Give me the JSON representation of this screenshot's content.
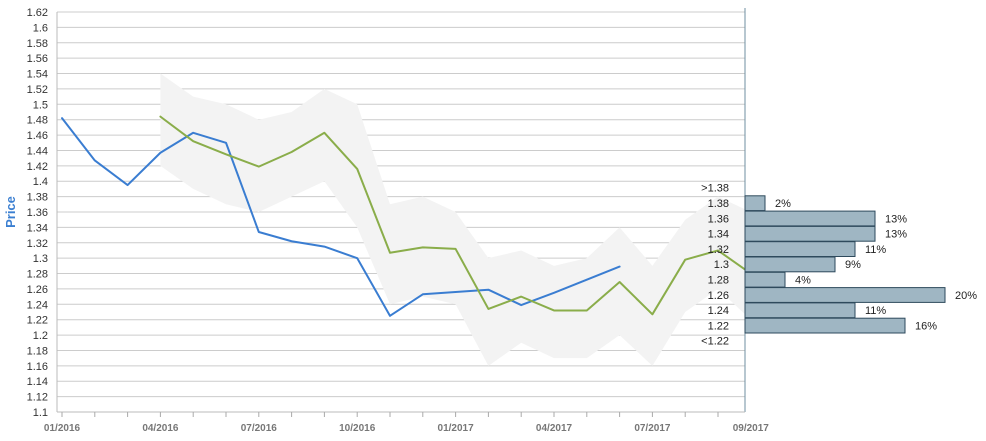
{
  "chart_data": {
    "type": "line",
    "title": "",
    "ylabel": "Price",
    "xlabel": "",
    "ylim": [
      1.1,
      1.62
    ],
    "yticks": [
      "1.1",
      "1.12",
      "1.14",
      "1.16",
      "1.18",
      "1.2",
      "1.22",
      "1.24",
      "1.26",
      "1.28",
      "1.3",
      "1.32",
      "1.34",
      "1.36",
      "1.38",
      "1.4",
      "1.42",
      "1.44",
      "1.46",
      "1.48",
      "1.5",
      "1.52",
      "1.54",
      "1.56",
      "1.58",
      "1.6",
      "1.62"
    ],
    "xticks": [
      "01/2016",
      "04/2016",
      "07/2016",
      "10/2016",
      "01/2017",
      "04/2017",
      "07/2017",
      "09/2017"
    ],
    "grid": true,
    "colors": {
      "actual": "#3a7dd1",
      "forecast": "#8aad4a",
      "band": "#f3f3f3",
      "hist_bar": "#9fb6c3",
      "grid": "#cccccc"
    },
    "months": [
      "2016-01",
      "2016-02",
      "2016-03",
      "2016-04",
      "2016-05",
      "2016-06",
      "2016-07",
      "2016-08",
      "2016-09",
      "2016-10",
      "2016-11",
      "2016-12",
      "2017-01",
      "2017-02",
      "2017-03",
      "2017-04",
      "2017-05",
      "2017-06",
      "2017-07",
      "2017-08",
      "2017-09"
    ],
    "series": [
      {
        "key": "actual",
        "x": [
          "2016-01",
          "2016-02",
          "2016-03",
          "2016-04",
          "2016-05",
          "2016-06",
          "2016-07",
          "2016-08",
          "2016-09",
          "2016-10",
          "2016-11",
          "2016-12",
          "2017-01",
          "2017-02",
          "2017-03",
          "2017-04",
          "2017-05",
          "2017-06"
        ],
        "values": [
          1.482,
          1.427,
          1.395,
          1.437,
          1.463,
          1.45,
          1.334,
          1.322,
          1.315,
          1.3,
          1.225,
          1.253,
          1.256,
          1.259,
          1.239,
          1.255,
          1.272,
          1.289
        ]
      },
      {
        "key": "forecast",
        "x": [
          "2016-04",
          "2016-05",
          "2016-06",
          "2016-07",
          "2016-08",
          "2016-09",
          "2016-10",
          "2016-11",
          "2016-12",
          "2017-01",
          "2017-02",
          "2017-03",
          "2017-04",
          "2017-05",
          "2017-06",
          "2017-07",
          "2017-08",
          "2017-09",
          "2017-10"
        ],
        "values": [
          1.484,
          1.452,
          1.435,
          1.419,
          1.438,
          1.463,
          1.416,
          1.307,
          1.314,
          1.312,
          1.234,
          1.25,
          1.232,
          1.232,
          1.269,
          1.227,
          1.298,
          1.31,
          1.28
        ]
      }
    ],
    "band": {
      "x": [
        "2016-04",
        "2016-05",
        "2016-06",
        "2016-07",
        "2016-08",
        "2016-09",
        "2016-10",
        "2016-11",
        "2016-12",
        "2017-01",
        "2017-02",
        "2017-03",
        "2017-04",
        "2017-05",
        "2017-06",
        "2017-07",
        "2017-08",
        "2017-09",
        "2017-10"
      ],
      "upper": [
        1.54,
        1.51,
        1.5,
        1.48,
        1.49,
        1.52,
        1.5,
        1.37,
        1.38,
        1.36,
        1.3,
        1.31,
        1.29,
        1.3,
        1.34,
        1.29,
        1.35,
        1.38,
        1.36
      ],
      "lower": [
        1.42,
        1.39,
        1.37,
        1.36,
        1.38,
        1.4,
        1.34,
        1.24,
        1.25,
        1.24,
        1.16,
        1.19,
        1.17,
        1.17,
        1.2,
        1.16,
        1.23,
        1.26,
        1.22
      ]
    },
    "distribution": {
      "bins": [
        {
          "label": ">1.38",
          "percent": ""
        },
        {
          "label": "1.38",
          "percent": "2%",
          "value": 2
        },
        {
          "label": "1.36",
          "percent": "13%",
          "value": 13
        },
        {
          "label": "1.34",
          "percent": "13%",
          "value": 13
        },
        {
          "label": "1.32",
          "percent": "11%",
          "value": 11
        },
        {
          "label": "1.3",
          "percent": "9%",
          "value": 9
        },
        {
          "label": "1.28",
          "percent": "4%",
          "value": 4
        },
        {
          "label": "1.26",
          "percent": "20%",
          "value": 20
        },
        {
          "label": "1.24",
          "percent": "11%",
          "value": 11
        },
        {
          "label": "1.22",
          "percent": "16%",
          "value": 16
        },
        {
          "label": "<1.22",
          "percent": ""
        }
      ]
    }
  }
}
